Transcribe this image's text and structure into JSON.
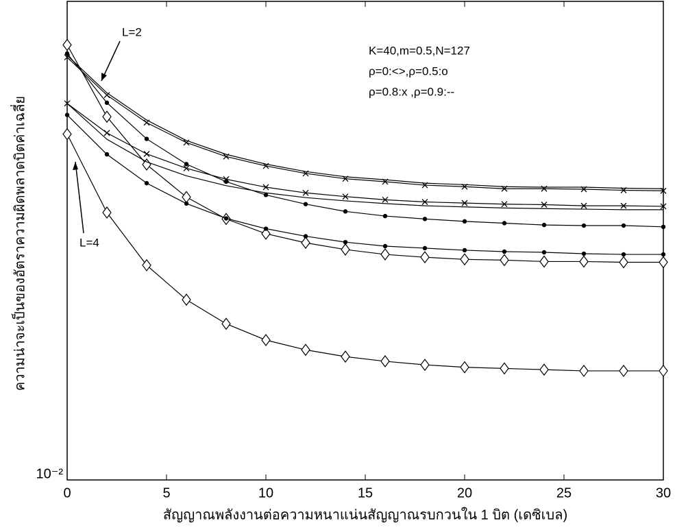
{
  "chart_data": {
    "type": "line",
    "log_y": true,
    "x_label": "สัญญาณพลังงานต่อความหนาแน่นสัญญาณรบกวนใน 1 บิต (เดซิเบล)",
    "y_label": "ความน่าจะเป็นของอัตราความผิดพลาดบิตค่าเฉลี่ย",
    "annotations": [
      "K=40,m=0.5,N=127",
      "ρ=0:<>,ρ=0.5:o",
      "ρ=0.8:x ,ρ=0.9:--",
      "L=2",
      "L=4"
    ],
    "x": [
      0,
      2,
      4,
      6,
      8,
      10,
      12,
      14,
      16,
      18,
      20,
      22,
      24,
      26,
      28,
      30
    ],
    "xlim": [
      0,
      30
    ],
    "xticks": [
      0,
      5,
      10,
      15,
      20,
      25,
      30
    ],
    "ylim": [
      0.01,
      0.1
    ],
    "yticks": [
      {
        "value": 0.01,
        "label": "10⁻²"
      }
    ],
    "series": [
      {
        "color": "#000000",
        "marker": "diamond",
        "values": [
          0.0811,
          0.0574,
          0.0456,
          0.039,
          0.0351,
          0.0327,
          0.0313,
          0.0303,
          0.0296,
          0.0292,
          0.0289,
          0.0288,
          0.0286,
          0.0286,
          0.0285,
          0.0285
        ]
      },
      {
        "color": "#000000",
        "marker": "dot",
        "values": [
          0.0778,
          0.0614,
          0.0516,
          0.0457,
          0.042,
          0.0394,
          0.0377,
          0.0364,
          0.0356,
          0.0351,
          0.0347,
          0.0344,
          0.0341,
          0.034,
          0.034,
          0.0338
        ]
      },
      {
        "color": "#000000",
        "marker": "x",
        "values": [
          0.0764,
          0.0637,
          0.0558,
          0.0507,
          0.0474,
          0.0453,
          0.0437,
          0.0426,
          0.042,
          0.0413,
          0.041,
          0.0406,
          0.0406,
          0.0405,
          0.0403,
          0.0402
        ]
      },
      {
        "color": "#000000",
        "marker": "none",
        "values": [
          0.0771,
          0.0644,
          0.0565,
          0.0512,
          0.0479,
          0.0457,
          0.0441,
          0.043,
          0.0424,
          0.0417,
          0.0414,
          0.041,
          0.0409,
          0.0409,
          0.0407,
          0.0406
        ]
      },
      {
        "color": "#000000",
        "marker": "diamond",
        "values": [
          0.0528,
          0.0362,
          0.0281,
          0.0238,
          0.0212,
          0.0196,
          0.0187,
          0.0181,
          0.0177,
          0.0174,
          0.0172,
          0.0171,
          0.017,
          0.0169,
          0.0169,
          0.0169
        ]
      },
      {
        "color": "#000000",
        "marker": "dot",
        "values": [
          0.0579,
          0.0479,
          0.0417,
          0.0378,
          0.0352,
          0.0335,
          0.0323,
          0.0314,
          0.0308,
          0.0305,
          0.0302,
          0.03,
          0.0299,
          0.0297,
          0.0296,
          0.0296
        ]
      },
      {
        "color": "#000000",
        "marker": "x",
        "values": [
          0.0612,
          0.0531,
          0.048,
          0.0448,
          0.0425,
          0.0409,
          0.0398,
          0.0391,
          0.0385,
          0.0381,
          0.0379,
          0.0377,
          0.0376,
          0.0374,
          0.0374,
          0.0373
        ]
      },
      {
        "color": "#000000",
        "marker": "none",
        "values": [
          0.0612,
          0.0515,
          0.0462,
          0.0432,
          0.0412,
          0.0398,
          0.0389,
          0.0383,
          0.0378,
          0.0374,
          0.0372,
          0.037,
          0.0369,
          0.0368,
          0.0367,
          0.0367
        ]
      }
    ]
  }
}
